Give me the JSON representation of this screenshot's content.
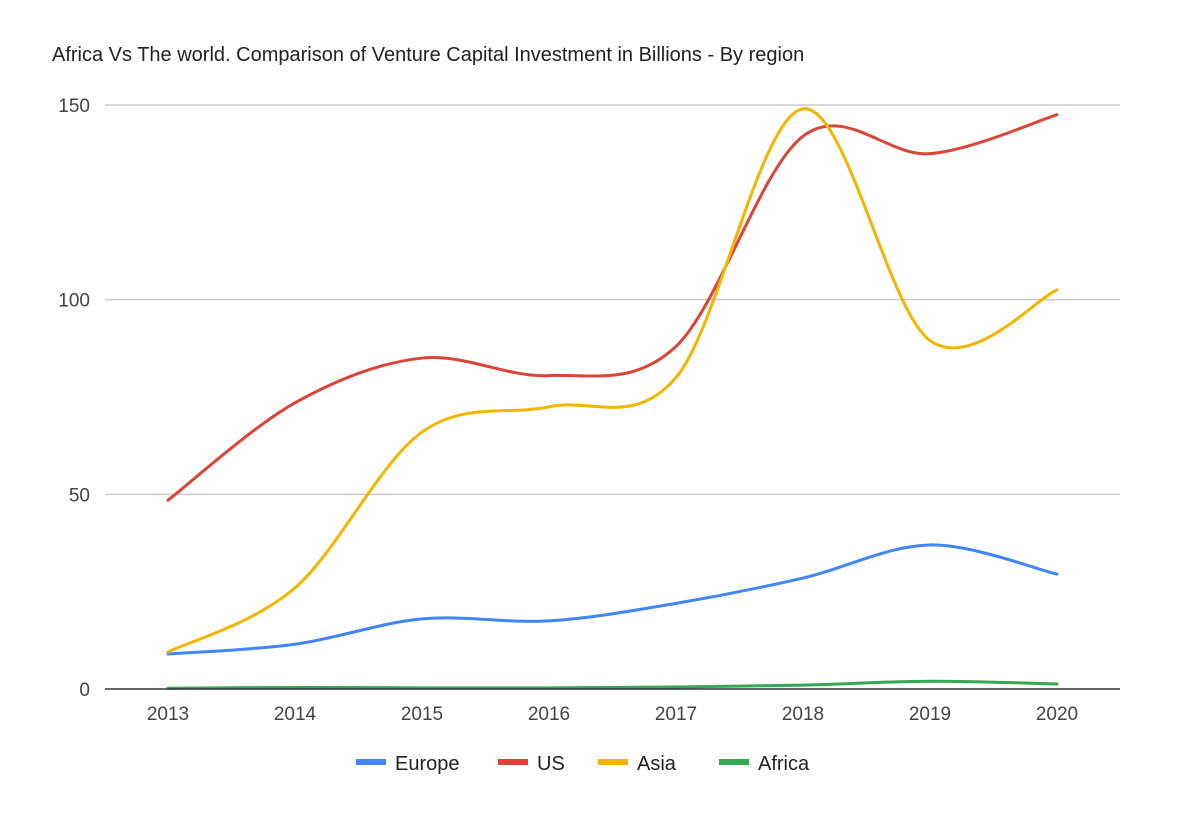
{
  "chart_data": {
    "type": "line",
    "title": "Africa Vs The world. Comparison of Venture Capital Investment in Billions - By region",
    "xlabel": "",
    "ylabel": "",
    "x": [
      "2013",
      "2014",
      "2015",
      "2016",
      "2017",
      "2018",
      "2019",
      "2020"
    ],
    "ylim": [
      0,
      150
    ],
    "yticks": [
      0,
      50,
      100,
      150
    ],
    "grid": true,
    "smooth": true,
    "legend_position": "bottom",
    "series": [
      {
        "name": "Europe",
        "color": "#4285f4",
        "values": [
          9,
          11.5,
          18,
          17.5,
          22,
          28.5,
          37,
          29.5
        ]
      },
      {
        "name": "US",
        "color": "#db4437",
        "values": [
          48.5,
          73.5,
          85,
          80.5,
          88,
          142,
          137.5,
          147.5
        ]
      },
      {
        "name": "Asia",
        "color": "#f4b400",
        "values": [
          9.5,
          26,
          66,
          72.5,
          80,
          149,
          89.5,
          102.5
        ]
      },
      {
        "name": "Africa",
        "color": "#34a853",
        "values": [
          0.2,
          0.4,
          0.3,
          0.3,
          0.5,
          1.0,
          2.0,
          1.3
        ]
      }
    ]
  }
}
